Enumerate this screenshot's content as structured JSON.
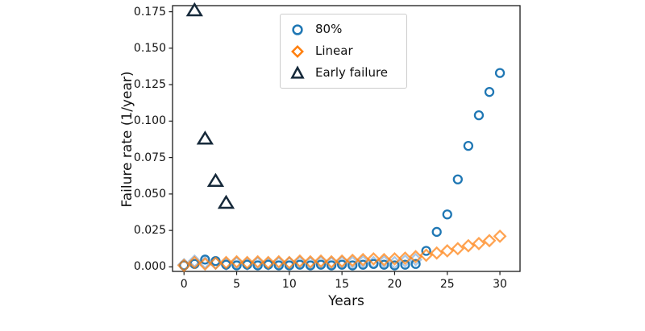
{
  "figure": {
    "background": "#ffffff",
    "spine_color": "#1a1a1a"
  },
  "chart_data": {
    "type": "scatter",
    "title": "",
    "xlabel": "Years",
    "ylabel": "Failure rate (1/year)",
    "xlim": [
      -1.09,
      31.91
    ],
    "ylim": [
      -0.0031,
      0.1792
    ],
    "xticks": [
      0,
      5,
      10,
      15,
      20,
      25,
      30
    ],
    "yticks": [
      "0.000",
      "0.025",
      "0.050",
      "0.075",
      "0.100",
      "0.125",
      "0.150",
      "0.175"
    ],
    "grid": false,
    "legend": {
      "position": "upper-center-left",
      "entries": [
        "80%",
        "Linear",
        "Early failure"
      ]
    },
    "x": [
      0,
      1,
      2,
      3,
      4,
      5,
      6,
      7,
      8,
      9,
      10,
      11,
      12,
      13,
      14,
      15,
      16,
      17,
      18,
      19,
      20,
      21,
      22,
      23,
      24,
      25,
      26,
      27,
      28,
      29,
      30
    ],
    "series": [
      {
        "name": "",
        "description": "unlabeled pale blue diamond series (not in legend)",
        "marker": "diamond",
        "color": "#a9c8e8",
        "opacity": 1,
        "x": [
          0,
          1,
          2,
          3,
          4,
          5,
          6,
          7,
          8,
          9,
          10,
          11,
          12,
          13,
          14,
          15,
          16,
          17,
          18,
          19,
          20,
          21,
          22
        ],
        "values": [
          0.0015,
          0.004,
          0.003,
          0.0025,
          0.002,
          0.0025,
          0.002,
          0.0025,
          0.002,
          0.0025,
          0.0025,
          0.003,
          0.0025,
          0.003,
          0.0025,
          0.003,
          0.003,
          0.0035,
          0.003,
          0.0035,
          0.003,
          0.004,
          0.005
        ]
      },
      {
        "name": "80%",
        "marker": "circle",
        "color": "#1f77b4",
        "opacity": 1,
        "values": [
          0.001,
          0.002,
          0.005,
          0.004,
          0.0015,
          0.001,
          0.0015,
          0.001,
          0.0015,
          0.001,
          0.001,
          0.0015,
          0.001,
          0.0015,
          0.001,
          0.0015,
          0.001,
          0.0015,
          0.002,
          0.0015,
          0.001,
          0.0015,
          0.002,
          0.011,
          0.024,
          0.036,
          0.06,
          0.083,
          0.104,
          0.12,
          0.133
        ]
      },
      {
        "name": "Linear",
        "marker": "diamond",
        "color": "#ff7f0e",
        "opacity": 0.72,
        "values": [
          0.001,
          0.003,
          0.002,
          0.0025,
          0.003,
          0.0035,
          0.003,
          0.0035,
          0.003,
          0.0035,
          0.003,
          0.004,
          0.0035,
          0.004,
          0.0035,
          0.004,
          0.0045,
          0.005,
          0.0055,
          0.005,
          0.0055,
          0.006,
          0.007,
          0.008,
          0.0095,
          0.011,
          0.0125,
          0.0145,
          0.016,
          0.018,
          0.021
        ]
      },
      {
        "name": "Early failure",
        "marker": "triangle",
        "color": "#16293a",
        "opacity": 1,
        "x": [
          1,
          2,
          3,
          4
        ],
        "values": [
          0.176,
          0.088,
          0.059,
          0.044
        ]
      }
    ]
  }
}
